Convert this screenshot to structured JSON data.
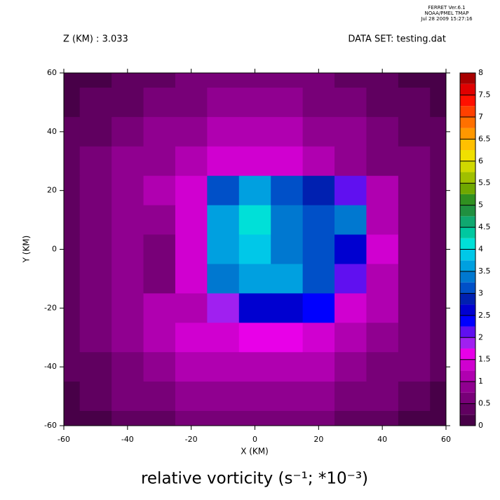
{
  "chart_data": {
    "type": "contour",
    "header": [
      "FERRET  Ver.6.1",
      "NOAA/PMEL TMAP",
      "Jul 28 2009 15:27:16"
    ],
    "subtitle_left": "Z (KM) : 3.033",
    "subtitle_right": "DATA SET: testing.dat",
    "title": "relative vorticity (s⁻¹; *10⁻³)",
    "xlabel": "X (KM)",
    "ylabel": "Y (KM)",
    "xlim": [
      -60,
      60
    ],
    "ylim": [
      -60,
      60
    ],
    "xticks": [
      -60,
      -40,
      -20,
      0,
      20,
      40,
      60
    ],
    "yticks": [
      -60,
      -40,
      -20,
      0,
      20,
      40,
      60
    ],
    "x": [
      -60,
      -50,
      -40,
      -30,
      -20,
      -10,
      0,
      10,
      20,
      30,
      40,
      50,
      60
    ],
    "y": [
      60,
      50,
      40,
      30,
      20,
      10,
      0,
      -10,
      -20,
      -30,
      -40,
      -50,
      -60
    ],
    "z": [
      [
        0.2,
        0.2,
        0.3,
        0.4,
        0.5,
        0.6,
        0.6,
        0.6,
        0.5,
        0.4,
        0.3,
        0.2,
        0.2
      ],
      [
        0.2,
        0.3,
        0.4,
        0.6,
        0.7,
        0.8,
        0.8,
        0.8,
        0.7,
        0.6,
        0.4,
        0.3,
        0.2
      ],
      [
        0.3,
        0.4,
        0.6,
        0.8,
        0.9,
        1.0,
        1.0,
        1.0,
        0.9,
        0.8,
        0.6,
        0.4,
        0.3
      ],
      [
        0.3,
        0.5,
        0.8,
        0.9,
        1.1,
        1.3,
        1.4,
        1.3,
        1.1,
        0.9,
        0.7,
        0.5,
        0.3
      ],
      [
        0.3,
        0.5,
        0.8,
        1.0,
        1.3,
        3.0,
        3.6,
        3.2,
        2.8,
        2.2,
        1.0,
        0.6,
        0.4
      ],
      [
        0.4,
        0.6,
        0.8,
        0.9,
        1.4,
        3.6,
        4.2,
        3.4,
        3.0,
        3.4,
        1.2,
        0.7,
        0.4
      ],
      [
        0.4,
        0.6,
        0.8,
        0.7,
        1.4,
        3.6,
        3.8,
        3.4,
        3.0,
        2.6,
        1.3,
        0.7,
        0.4
      ],
      [
        0.4,
        0.6,
        0.9,
        0.6,
        1.3,
        3.4,
        3.7,
        3.6,
        3.2,
        2.2,
        1.2,
        0.7,
        0.4
      ],
      [
        0.4,
        0.6,
        0.9,
        1.0,
        1.2,
        1.8,
        2.6,
        2.7,
        2.4,
        1.4,
        1.1,
        0.6,
        0.4
      ],
      [
        0.3,
        0.5,
        0.8,
        1.0,
        1.3,
        1.4,
        1.5,
        1.5,
        1.3,
        1.1,
        0.9,
        0.6,
        0.3
      ],
      [
        0.3,
        0.4,
        0.7,
        0.9,
        1.1,
        1.2,
        1.2,
        1.2,
        1.1,
        0.9,
        0.7,
        0.5,
        0.3
      ],
      [
        0.2,
        0.3,
        0.5,
        0.7,
        0.8,
        0.9,
        0.9,
        0.9,
        0.8,
        0.7,
        0.5,
        0.3,
        0.2
      ],
      [
        0.2,
        0.2,
        0.3,
        0.4,
        0.5,
        0.6,
        0.6,
        0.6,
        0.5,
        0.4,
        0.3,
        0.2,
        0.2
      ]
    ],
    "levels": [
      0,
      0.25,
      0.5,
      0.75,
      1,
      1.25,
      1.5,
      1.75,
      2,
      2.25,
      2.5,
      2.75,
      3,
      3.25,
      3.5,
      3.75,
      4,
      4.25,
      4.5,
      4.75,
      5,
      5.25,
      5.5,
      5.75,
      6,
      6.25,
      6.5,
      6.75,
      7,
      7.25,
      7.5,
      7.75,
      8
    ],
    "colors": [
      "#480048",
      "#600060",
      "#780078",
      "#900090",
      "#b000b0",
      "#d000d0",
      "#e800e8",
      "#a020f0",
      "#6010f0",
      "#0000ff",
      "#0000d0",
      "#0020b0",
      "#0050c8",
      "#0078d0",
      "#00a0e0",
      "#00c8e8",
      "#00e0d8",
      "#00c8a0",
      "#10a870",
      "#209040",
      "#309020",
      "#70a800",
      "#a0c000",
      "#d0d800",
      "#f0e000",
      "#ffc000",
      "#ff9800",
      "#ff7000",
      "#ff4000",
      "#ff1000",
      "#e00000",
      "#a80000"
    ],
    "colorbar_ticks": [
      0,
      0.5,
      1,
      1.5,
      2,
      2.5,
      3,
      3.5,
      4,
      4.5,
      5,
      5.5,
      6,
      6.5,
      7,
      7.5,
      8
    ]
  }
}
